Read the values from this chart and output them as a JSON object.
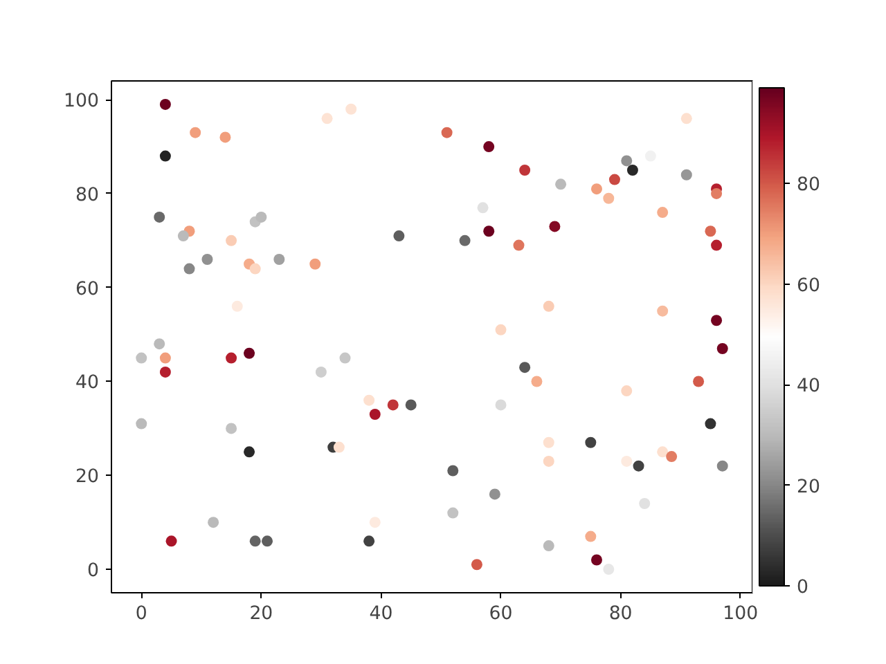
{
  "chart_data": {
    "type": "scatter",
    "marker": "circle",
    "grid": false,
    "xlim": [
      -5,
      102
    ],
    "ylim": [
      -5,
      104
    ],
    "xticks": [
      0,
      20,
      40,
      60,
      80,
      100
    ],
    "yticks": [
      0,
      20,
      40,
      60,
      80,
      100
    ],
    "clim": [
      0,
      99
    ],
    "cticks": [
      0,
      20,
      40,
      60,
      80
    ],
    "series": [
      {
        "x": [
          4,
          4,
          9,
          14,
          31,
          35,
          51,
          58,
          64,
          3,
          8,
          7,
          8,
          11,
          15,
          19,
          20,
          23,
          18,
          19,
          29,
          16,
          43,
          57,
          58,
          54,
          63,
          69,
          70,
          76,
          78,
          79,
          81,
          82,
          85,
          91,
          91,
          96,
          96,
          95,
          96,
          87,
          68,
          60,
          96,
          0,
          3,
          4,
          4,
          15,
          18,
          30,
          34,
          0,
          15,
          18,
          32,
          33,
          38,
          39,
          42,
          45,
          12,
          5,
          19,
          21,
          38,
          39,
          64,
          66,
          60,
          52,
          52,
          59,
          68,
          68,
          75,
          81,
          87,
          88.5,
          83,
          84,
          93,
          95,
          97,
          97,
          87,
          75,
          76,
          78,
          68,
          56,
          81
        ],
        "values": [
          99,
          88,
          93,
          92,
          96,
          98,
          93,
          90,
          85,
          75,
          72,
          71,
          64,
          66,
          70,
          74,
          75,
          66,
          65,
          64,
          65,
          56,
          71,
          77,
          72,
          70,
          69,
          73,
          82,
          81,
          79,
          83,
          87,
          85,
          88,
          96,
          84,
          81,
          80,
          72,
          69,
          76,
          56,
          51,
          53,
          45,
          48,
          45,
          42,
          45,
          46,
          42,
          45,
          31,
          30,
          25,
          26,
          26,
          36,
          33,
          35,
          35,
          10,
          6,
          6,
          6,
          6,
          10,
          43,
          40,
          35,
          21,
          12,
          16,
          27,
          23,
          27,
          38,
          25,
          24,
          22,
          14,
          40,
          31,
          47,
          22,
          55,
          7,
          2,
          0,
          5,
          1,
          23
        ],
        "cvalues": [
          98,
          2,
          70,
          70,
          57,
          57,
          78,
          97,
          85,
          15,
          70,
          30,
          20,
          22,
          62,
          32,
          30,
          25,
          68,
          60,
          70,
          55,
          13,
          40,
          98,
          15,
          76,
          95,
          30,
          70,
          66,
          82,
          22,
          3,
          45,
          58,
          23,
          88,
          75,
          78,
          88,
          68,
          62,
          60,
          97,
          32,
          30,
          70,
          88,
          88,
          98,
          35,
          33,
          30,
          32,
          3,
          7,
          58,
          58,
          90,
          85,
          12,
          30,
          90,
          14,
          13,
          8,
          55,
          12,
          68,
          38,
          13,
          32,
          22,
          58,
          60,
          8,
          60,
          58,
          75,
          8,
          40,
          80,
          5,
          97,
          20,
          65,
          68,
          97,
          42,
          30,
          80,
          55
        ]
      }
    ]
  }
}
